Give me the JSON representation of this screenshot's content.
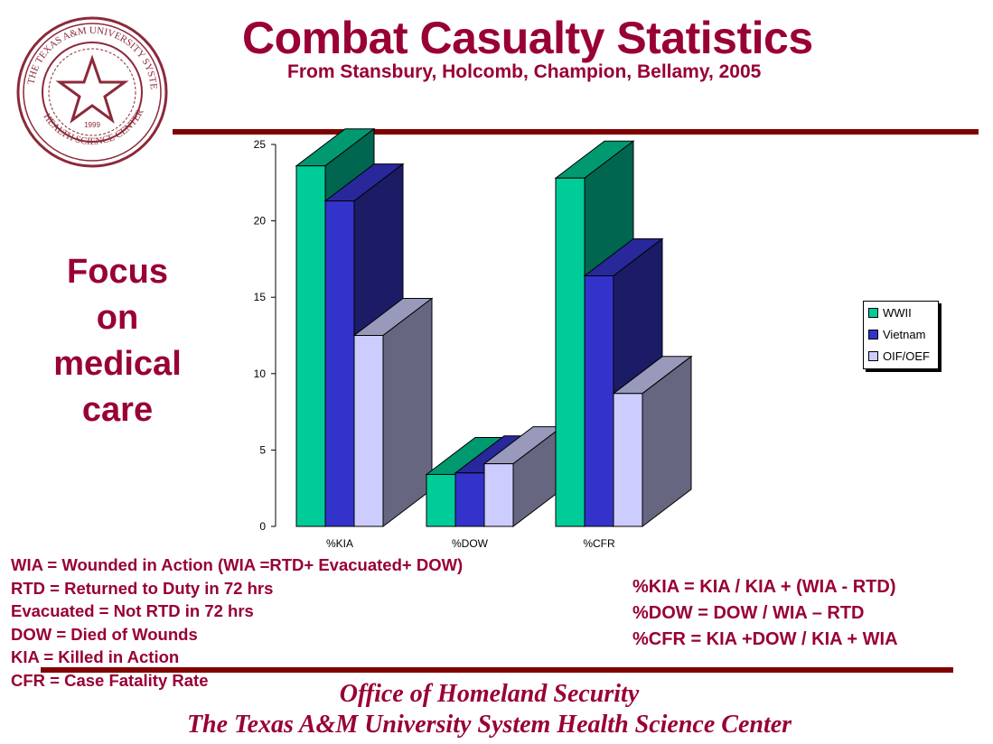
{
  "title": "Combat Casualty Statistics",
  "subtitle": "From Stansbury, Holcomb, Champion, Bellamy, 2005",
  "focus": [
    "Focus",
    "on",
    "medical",
    "care"
  ],
  "definitions": [
    "WIA = Wounded in Action (WIA =RTD+ Evacuated+ DOW)",
    "RTD = Returned to Duty in 72 hrs",
    "Evacuated = Not RTD in 72 hrs",
    "DOW = Died of Wounds",
    "KIA = Killed in Action",
    "CFR = Case Fatality Rate"
  ],
  "formulas": [
    "%KIA = KIA / KIA + (WIA - RTD)",
    "%DOW = DOW / WIA – RTD",
    "%CFR = KIA +DOW / KIA + WIA"
  ],
  "footer": [
    "Office of Homeland Security",
    "The Texas A&M University System Health Science Center"
  ],
  "seal": {
    "text": "THE TEXAS A&M UNIVERSITY SYSTEM · HEALTH SCIENCE CENTER",
    "year": "1999"
  },
  "chart_data": {
    "type": "bar",
    "title": "",
    "categories": [
      "%KIA",
      "%DOW",
      "%CFR"
    ],
    "series": [
      {
        "name": "WWII",
        "values": [
          23.6,
          3.4,
          22.8
        ],
        "color": "#00CC99"
      },
      {
        "name": "Vietnam",
        "values": [
          21.3,
          3.5,
          16.4
        ],
        "color": "#3333CC"
      },
      {
        "name": "OIF/OEF",
        "values": [
          12.5,
          4.1,
          8.7
        ],
        "color": "#CCCCFF"
      }
    ],
    "ylim": [
      0,
      25
    ],
    "yticks": [
      0,
      5,
      10,
      15,
      20,
      25
    ],
    "legend": "right",
    "grid": false
  }
}
